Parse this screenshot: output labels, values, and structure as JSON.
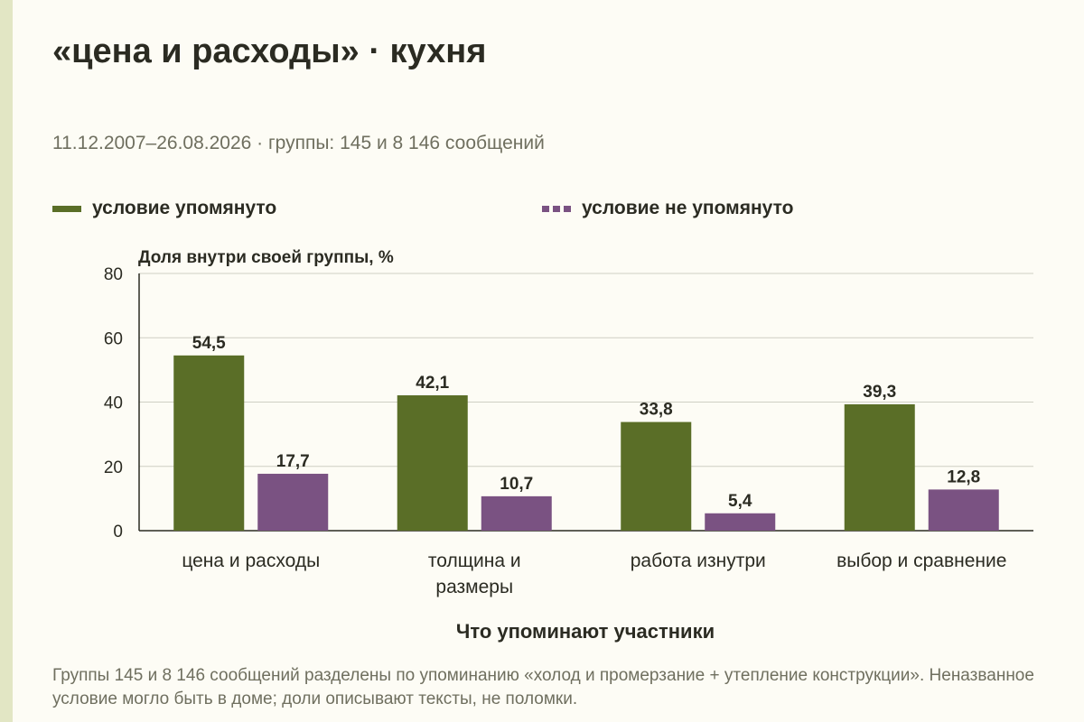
{
  "header": {
    "title": "«цена и расходы» · кухня",
    "subtitle": "11.12.2007–26.08.2026 · группы: 145 и 8 146 сообщений"
  },
  "legend": {
    "mentioned": "условие упомянуто",
    "not_mentioned": "условие не упомянуто"
  },
  "footnote": "Группы 145 и 8 146 сообщений разделены по упоминанию «холод и промерзание + утепление конструкции». Неназванное условие могло быть в доме; доли описывают тексты, не поломки.",
  "colors": {
    "mentioned": "#5a6e27",
    "not_mentioned": "#7a5282",
    "background": "#fdfcf5"
  },
  "chart_data": {
    "type": "bar",
    "ylabel": "Доля внутри своей группы, %",
    "xlabel": "Что упоминают участники",
    "ylim": [
      0,
      80
    ],
    "yticks": [
      0,
      20,
      40,
      60,
      80
    ],
    "grid": true,
    "legend_position": "top",
    "categories": [
      [
        "цена и расходы"
      ],
      [
        "толщина и",
        "размеры"
      ],
      [
        "работа изнутри"
      ],
      [
        "выбор и сравнение"
      ]
    ],
    "series": [
      {
        "name": "условие упомянуто",
        "values": [
          54.5,
          42.1,
          33.8,
          39.3
        ],
        "labels": [
          "54,5",
          "42,1",
          "33,8",
          "39,3"
        ]
      },
      {
        "name": "условие не упомянуто",
        "values": [
          17.7,
          10.7,
          5.4,
          12.8
        ],
        "labels": [
          "17,7",
          "10,7",
          "5,4",
          "12,8"
        ]
      }
    ]
  }
}
